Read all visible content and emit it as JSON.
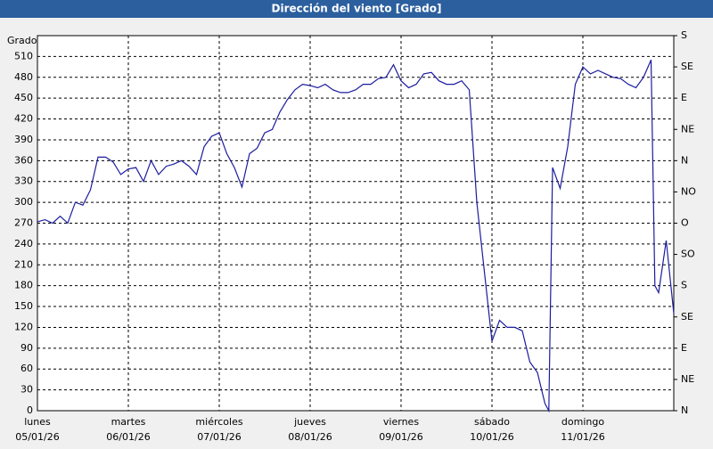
{
  "chart_data": {
    "type": "line",
    "title": "Dirección del viento [Grado]",
    "y_label": "Grado",
    "color": "#1c1ca0",
    "grid": true,
    "xlim": [
      0,
      168
    ],
    "xticks": [
      {
        "value": 0,
        "label": "lunes",
        "date": "05/01/26"
      },
      {
        "value": 24,
        "label": "martes",
        "date": "06/01/26"
      },
      {
        "value": 48,
        "label": "miércoles",
        "date": "07/01/26"
      },
      {
        "value": 72,
        "label": "jueves",
        "date": "08/01/26"
      },
      {
        "value": 96,
        "label": "viernes",
        "date": "09/01/26"
      },
      {
        "value": 120,
        "label": "sábado",
        "date": "10/01/26"
      },
      {
        "value": 144,
        "label": "domingo",
        "date": "11/01/26"
      }
    ],
    "ylim": [
      0,
      540
    ],
    "yticks": [
      0,
      30,
      60,
      90,
      120,
      150,
      180,
      210,
      240,
      270,
      300,
      330,
      360,
      390,
      420,
      450,
      480,
      510
    ],
    "y2lim": [
      0,
      540
    ],
    "y2ticks": [
      {
        "value": 0,
        "label": "N"
      },
      {
        "value": 45,
        "label": "NE"
      },
      {
        "value": 90,
        "label": "E"
      },
      {
        "value": 135,
        "label": "SE"
      },
      {
        "value": 180,
        "label": "S"
      },
      {
        "value": 225,
        "label": "SO"
      },
      {
        "value": 270,
        "label": "O"
      },
      {
        "value": 315,
        "label": "NO"
      },
      {
        "value": 360,
        "label": "N"
      },
      {
        "value": 405,
        "label": "NE"
      },
      {
        "value": 450,
        "label": "E"
      },
      {
        "value": 495,
        "label": "SE"
      },
      {
        "value": 540,
        "label": "S"
      }
    ],
    "x": [
      0,
      2,
      4,
      6,
      8,
      10,
      12,
      14,
      16,
      18,
      20,
      22,
      24,
      26,
      28,
      30,
      32,
      34,
      36,
      38,
      40,
      42,
      44,
      46,
      48,
      50,
      52,
      54,
      56,
      58,
      60,
      62,
      64,
      66,
      68,
      70,
      72,
      74,
      76,
      78,
      80,
      82,
      84,
      86,
      88,
      90,
      92,
      94,
      96,
      98,
      100,
      102,
      104,
      106,
      108,
      110,
      112,
      114,
      116,
      118,
      120,
      122,
      124,
      126,
      128,
      130,
      132,
      134,
      135,
      136,
      138,
      140,
      142,
      144,
      146,
      148,
      150,
      152,
      154,
      156,
      158,
      160,
      162,
      163,
      164,
      166,
      168
    ],
    "values": [
      272,
      275,
      270,
      280,
      270,
      300,
      296,
      318,
      365,
      365,
      358,
      340,
      348,
      350,
      330,
      360,
      340,
      352,
      355,
      360,
      352,
      340,
      380,
      395,
      400,
      370,
      350,
      322,
      370,
      378,
      400,
      405,
      430,
      448,
      462,
      470,
      468,
      465,
      470,
      462,
      458,
      458,
      462,
      470,
      470,
      478,
      480,
      498,
      475,
      465,
      470,
      485,
      487,
      475,
      470,
      470,
      475,
      462,
      300,
      200,
      100,
      130,
      120,
      120,
      115,
      70,
      55,
      10,
      0,
      350,
      320,
      380,
      470,
      495,
      485,
      490,
      485,
      480,
      478,
      470,
      465,
      480,
      505,
      180,
      170,
      245,
      140
    ]
  }
}
